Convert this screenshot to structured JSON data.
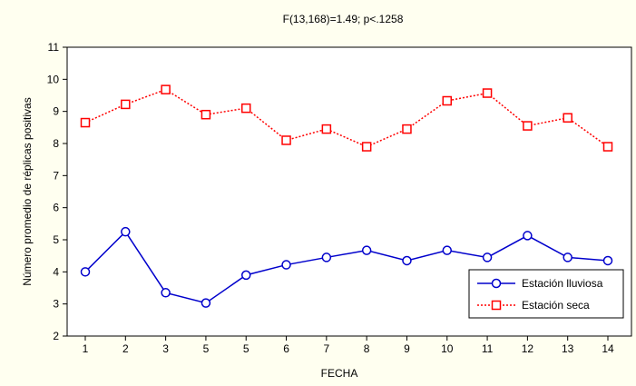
{
  "chart_data": {
    "type": "line",
    "title": "F(13,168)=1.49;  p<.1258",
    "xlabel": "FECHA",
    "ylabel": "Número promedio de réplicas positivas",
    "categories": [
      "1",
      "2",
      "3",
      "5",
      "5",
      "6",
      "7",
      "8",
      "9",
      "10",
      "11",
      "12",
      "13",
      "14"
    ],
    "ylim": [
      2,
      11
    ],
    "yticks": [
      2,
      3,
      4,
      5,
      6,
      7,
      8,
      9,
      10,
      11
    ],
    "grid": false,
    "legend_position": "bottom-right",
    "series": [
      {
        "name": "Estación lluviosa",
        "color": "#0000cc",
        "marker": "circle",
        "line_style": "solid",
        "values": [
          4.0,
          5.25,
          3.35,
          3.03,
          3.9,
          4.22,
          4.45,
          4.67,
          4.35,
          4.67,
          4.45,
          5.13,
          4.45,
          4.35
        ]
      },
      {
        "name": "Estación seca",
        "color": "#ff0000",
        "marker": "square",
        "line_style": "dotted",
        "values": [
          8.65,
          9.22,
          9.68,
          8.9,
          9.1,
          8.1,
          8.45,
          7.9,
          8.45,
          9.33,
          9.57,
          8.55,
          8.8,
          7.9
        ]
      }
    ]
  }
}
